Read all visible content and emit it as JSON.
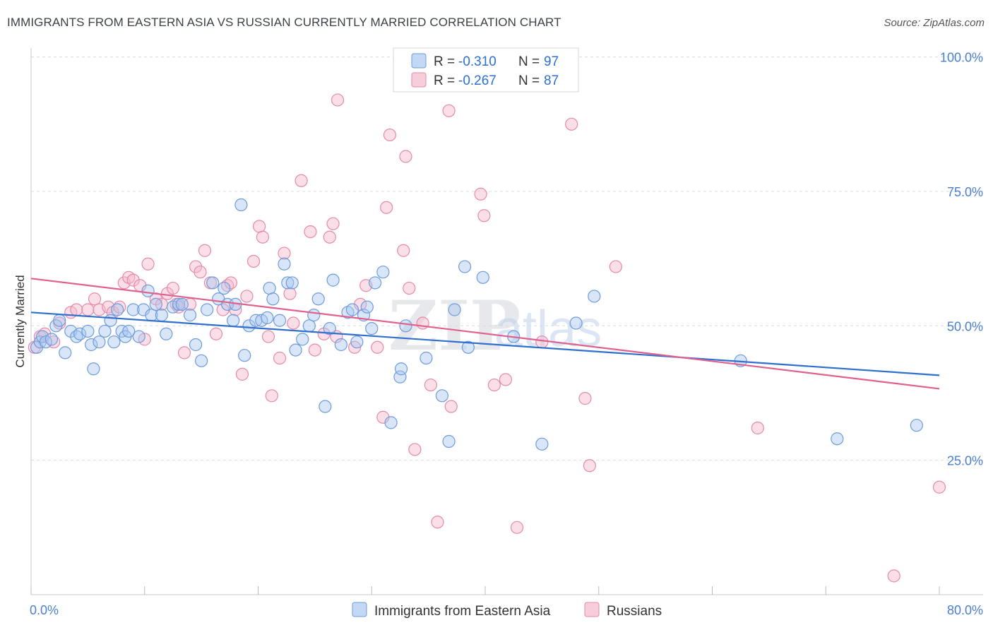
{
  "header": {
    "title": "IMMIGRANTS FROM EASTERN ASIA VS RUSSIAN CURRENTLY MARRIED CORRELATION CHART",
    "source": "Source: ZipAtlas.com"
  },
  "watermark": {
    "zip": "ZIP",
    "atlas": "atlas"
  },
  "legend_top": {
    "rows": [
      {
        "r_label": "R =",
        "r_value": "-0.310",
        "n_label": "N =",
        "n_value": "97"
      },
      {
        "r_label": "R =",
        "r_value": "-0.267",
        "n_label": "N =",
        "n_value": "87"
      }
    ]
  },
  "colors": {
    "blue_fill": "#a9c8f0",
    "blue_stroke": "#6d9bdc",
    "blue_line": "#2f6fcf",
    "pink_fill": "#f5b8cc",
    "pink_stroke": "#e58aa8",
    "pink_line": "#e0608e",
    "grid": "#d9dce2",
    "axis_text": "#4a7fd0"
  },
  "chart_data": {
    "type": "scatter",
    "ylabel": "Currently Married",
    "xlim": [
      0,
      80
    ],
    "ylim": [
      0,
      105
    ],
    "x_tick_labels": [
      "0.0%",
      "80.0%"
    ],
    "y_ticks": [
      25,
      50,
      75,
      100
    ],
    "y_tick_labels": [
      "25.0%",
      "50.0%",
      "75.0%",
      "100.0%"
    ],
    "grid": true,
    "legend_position": "top-center",
    "series": [
      {
        "name": "Immigrants from Eastern Asia",
        "color": "blue",
        "trend": {
          "x": [
            0,
            80
          ],
          "y": [
            52.5,
            40.8
          ]
        },
        "points": [
          [
            0.5,
            46
          ],
          [
            0.8,
            47
          ],
          [
            1,
            48
          ],
          [
            1.3,
            47
          ],
          [
            1.8,
            47.5
          ],
          [
            2.2,
            50
          ],
          [
            2.5,
            51
          ],
          [
            3,
            45
          ],
          [
            3.5,
            49
          ],
          [
            4,
            48
          ],
          [
            4.3,
            48.5
          ],
          [
            5,
            49
          ],
          [
            5.3,
            46.5
          ],
          [
            5.5,
            42
          ],
          [
            6,
            47
          ],
          [
            6.5,
            49
          ],
          [
            7,
            51
          ],
          [
            7.3,
            47
          ],
          [
            7.6,
            53
          ],
          [
            8,
            49
          ],
          [
            8.3,
            48
          ],
          [
            8.6,
            49
          ],
          [
            9,
            53
          ],
          [
            9.5,
            48
          ],
          [
            9.9,
            53
          ],
          [
            10.3,
            56.5
          ],
          [
            10.6,
            52
          ],
          [
            11,
            54
          ],
          [
            11.5,
            52
          ],
          [
            11.9,
            48.5
          ],
          [
            12.5,
            53.5
          ],
          [
            13,
            54
          ],
          [
            13.3,
            54
          ],
          [
            14,
            52
          ],
          [
            14.5,
            46.5
          ],
          [
            15,
            43.5
          ],
          [
            15.5,
            53
          ],
          [
            16,
            58
          ],
          [
            16.5,
            55
          ],
          [
            17,
            57
          ],
          [
            17.3,
            54
          ],
          [
            17.8,
            51
          ],
          [
            18,
            54
          ],
          [
            18.5,
            72.5
          ],
          [
            18.8,
            44.5
          ],
          [
            19.2,
            50
          ],
          [
            19.8,
            51
          ],
          [
            20.3,
            51
          ],
          [
            20.8,
            51.5
          ],
          [
            21,
            57
          ],
          [
            21.3,
            55
          ],
          [
            21.9,
            51
          ],
          [
            22.3,
            61.5
          ],
          [
            22.6,
            58
          ],
          [
            23,
            58
          ],
          [
            23.3,
            45.5
          ],
          [
            23.9,
            47.5
          ],
          [
            24.5,
            50
          ],
          [
            24.9,
            52
          ],
          [
            25.3,
            55
          ],
          [
            25.9,
            35
          ],
          [
            26.3,
            49.5
          ],
          [
            26.6,
            58.5
          ],
          [
            27.3,
            46.5
          ],
          [
            27.9,
            52.5
          ],
          [
            28.3,
            53
          ],
          [
            28.7,
            47
          ],
          [
            29.3,
            52
          ],
          [
            29.6,
            53.5
          ],
          [
            30,
            49.5
          ],
          [
            30.3,
            58
          ],
          [
            31,
            60
          ],
          [
            31.7,
            32
          ],
          [
            32.5,
            40.5
          ],
          [
            32.6,
            42
          ],
          [
            33,
            50
          ],
          [
            34.8,
            44
          ],
          [
            36.2,
            37
          ],
          [
            36.8,
            28.5
          ],
          [
            37.3,
            53
          ],
          [
            38.2,
            61
          ],
          [
            38.5,
            46
          ],
          [
            39.8,
            59
          ],
          [
            42.5,
            48
          ],
          [
            45,
            28
          ],
          [
            48,
            50.5
          ],
          [
            49.6,
            55.5
          ],
          [
            62.5,
            43.5
          ],
          [
            71,
            29
          ],
          [
            78,
            31.5
          ]
        ]
      },
      {
        "name": "Russians",
        "color": "pink",
        "trend": {
          "x": [
            0,
            80
          ],
          "y": [
            58.8,
            38.3
          ]
        },
        "points": [
          [
            0.3,
            46
          ],
          [
            0.8,
            48
          ],
          [
            1.2,
            48.5
          ],
          [
            2,
            47
          ],
          [
            2.5,
            50.5
          ],
          [
            3.5,
            52.5
          ],
          [
            4,
            53
          ],
          [
            5,
            53
          ],
          [
            5.6,
            55
          ],
          [
            6,
            53
          ],
          [
            6.8,
            53.5
          ],
          [
            7.2,
            52.5
          ],
          [
            7.8,
            53.5
          ],
          [
            8.2,
            58
          ],
          [
            8.6,
            59
          ],
          [
            9,
            58.5
          ],
          [
            9.6,
            57.5
          ],
          [
            10,
            47.5
          ],
          [
            10.3,
            61.5
          ],
          [
            11,
            55
          ],
          [
            11.5,
            54
          ],
          [
            12,
            56
          ],
          [
            12.5,
            57
          ],
          [
            12.8,
            54
          ],
          [
            13,
            53.5
          ],
          [
            13.5,
            45
          ],
          [
            14,
            54
          ],
          [
            14.5,
            61
          ],
          [
            14.9,
            60
          ],
          [
            15.3,
            64
          ],
          [
            15.8,
            58
          ],
          [
            16.3,
            48.5
          ],
          [
            16.9,
            53
          ],
          [
            17.3,
            57.5
          ],
          [
            17.6,
            58
          ],
          [
            18,
            53
          ],
          [
            18.6,
            41
          ],
          [
            19,
            55.5
          ],
          [
            19.6,
            62
          ],
          [
            20.1,
            68.5
          ],
          [
            20.4,
            66.5
          ],
          [
            20.9,
            48
          ],
          [
            21.2,
            37
          ],
          [
            21.9,
            44
          ],
          [
            22.3,
            63.5
          ],
          [
            22.8,
            56
          ],
          [
            23.1,
            50.5
          ],
          [
            23.8,
            77
          ],
          [
            24.6,
            67.5
          ],
          [
            25,
            45.5
          ],
          [
            25.8,
            48.5
          ],
          [
            26.3,
            66.5
          ],
          [
            26.6,
            69
          ],
          [
            26.9,
            48
          ],
          [
            27,
            92
          ],
          [
            28.5,
            46
          ],
          [
            29,
            54
          ],
          [
            29.5,
            57.5
          ],
          [
            30.5,
            46
          ],
          [
            31,
            33
          ],
          [
            31.3,
            72
          ],
          [
            31.6,
            85.5
          ],
          [
            32.8,
            64
          ],
          [
            33,
            81.5
          ],
          [
            33.3,
            57
          ],
          [
            33.8,
            27
          ],
          [
            34.5,
            50.5
          ],
          [
            35.2,
            39
          ],
          [
            35.8,
            13.5
          ],
          [
            36.8,
            90
          ],
          [
            37,
            35
          ],
          [
            39.6,
            74.5
          ],
          [
            39.9,
            70.5
          ],
          [
            40.8,
            39
          ],
          [
            41.8,
            40
          ],
          [
            42.8,
            12.5
          ],
          [
            45,
            47
          ],
          [
            47.6,
            87.5
          ],
          [
            48.8,
            36.5
          ],
          [
            49.2,
            24
          ],
          [
            51.5,
            61
          ],
          [
            64,
            31
          ],
          [
            76,
            3.5
          ],
          [
            80,
            20
          ]
        ]
      }
    ]
  }
}
